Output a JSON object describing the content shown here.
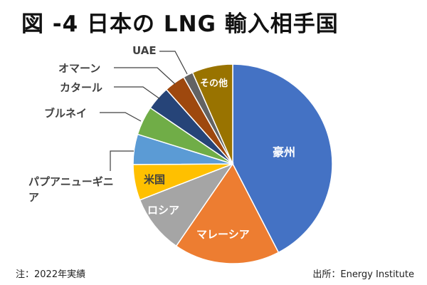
{
  "title": "図 -4 日本の LNG 輸入相手国",
  "note": "注：2022年実績",
  "source": "出所：Energy Institute",
  "chart_data": {
    "type": "pie",
    "title": "図 -4 日本の LNG 輸入相手国",
    "unit": "%",
    "start": "12 o'clock, clockwise",
    "slices": [
      {
        "label": "豪州",
        "value": 42.4,
        "color": "#4472C4"
      },
      {
        "label": "マレーシア",
        "value": 17.2,
        "color": "#ED7D31"
      },
      {
        "label": "ロシア",
        "value": 9.5,
        "color": "#A5A5A5"
      },
      {
        "label": "米国",
        "value": 5.8,
        "color": "#FFC000"
      },
      {
        "label": "パプアニューギニア",
        "value": 4.9,
        "color": "#5B9BD5"
      },
      {
        "label": "ブルネイ",
        "value": 4.7,
        "color": "#70AD47"
      },
      {
        "label": "カタール",
        "value": 3.9,
        "color": "#264478"
      },
      {
        "label": "オマーン",
        "value": 3.4,
        "color": "#9E480E"
      },
      {
        "label": "UAE",
        "value": 1.6,
        "color": "#636363"
      },
      {
        "label": "その他",
        "value": 6.6,
        "color": "#997300"
      }
    ]
  }
}
